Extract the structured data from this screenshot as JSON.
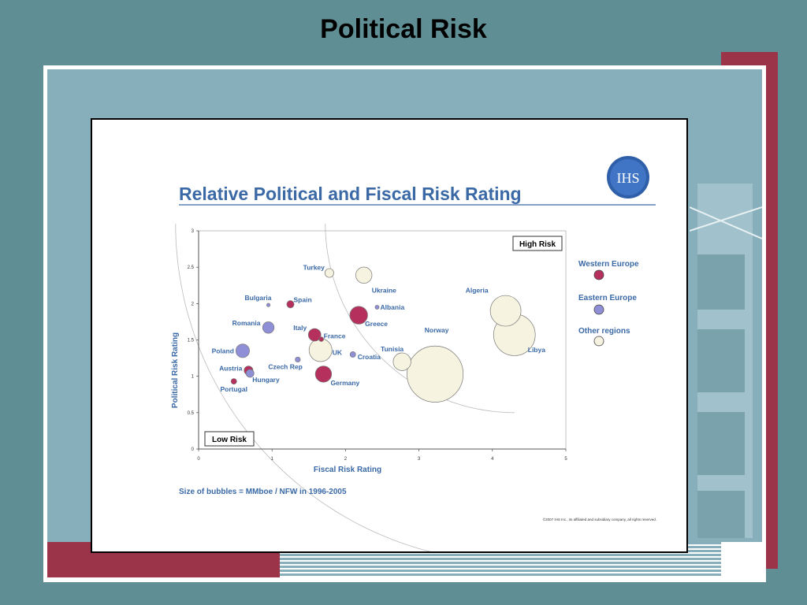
{
  "slide": {
    "title": "Political Risk"
  },
  "logo": {
    "text": "IHS"
  },
  "colors": {
    "background": "#5f8f95",
    "accent_red": "#9b3349",
    "panel_blue": "#86aebb",
    "western_europe": "#b5305d",
    "eastern_europe": "#8f8fd8",
    "other_regions": "#f6f4e0",
    "title_blue": "#3a69a6"
  },
  "chart_data": {
    "type": "scatter",
    "title": "Relative Political and Fiscal Risk Rating",
    "xlabel": "Fiscal Risk Rating",
    "ylabel": "Political Risk Rating",
    "xlim": [
      0,
      5
    ],
    "ylim": [
      0,
      3
    ],
    "x_ticks": [
      "0",
      "1",
      "2",
      "3",
      "4",
      "5"
    ],
    "y_ticks": [
      "0",
      "0.5",
      "1",
      "1.5",
      "2",
      "2.5",
      "3"
    ],
    "grid": false,
    "legend_position": "right",
    "legend": [
      {
        "name": "Western Europe",
        "color": "#b5305d"
      },
      {
        "name": "Eastern Europe",
        "color": "#8f8fd8"
      },
      {
        "name": "Other regions",
        "color": "#f6f4e0"
      }
    ],
    "annotations": {
      "high_risk": "High Risk",
      "low_risk": "Low Risk"
    },
    "note": "Size of bubbles = MMboe / NFW in 1996-2005",
    "copyright": "©2007 IHS Inc., its affiliated and subsidiary company, all rights reserved.",
    "points": [
      {
        "label": "Turkey",
        "x": 1.78,
        "y": 2.42,
        "size": 1.5,
        "region": "Other regions"
      },
      {
        "label": "Ukraine",
        "x": 2.25,
        "y": 2.39,
        "size": 5,
        "region": "Other regions"
      },
      {
        "label": "Bulgaria",
        "x": 0.95,
        "y": 1.98,
        "size": 0.2,
        "region": "Eastern Europe"
      },
      {
        "label": "Spain",
        "x": 1.25,
        "y": 1.99,
        "size": 1,
        "region": "Western Europe"
      },
      {
        "label": "Albania",
        "x": 2.43,
        "y": 1.95,
        "size": 0.3,
        "region": "Eastern Europe"
      },
      {
        "label": "Greece",
        "x": 2.18,
        "y": 1.84,
        "size": 6,
        "region": "Western Europe"
      },
      {
        "label": "Romania",
        "x": 0.95,
        "y": 1.67,
        "size": 2.5,
        "region": "Eastern Europe"
      },
      {
        "label": "Italy",
        "x": 1.58,
        "y": 1.57,
        "size": 3,
        "region": "Western Europe"
      },
      {
        "label": "France",
        "x": 1.67,
        "y": 1.51,
        "size": 0.4,
        "region": "Western Europe"
      },
      {
        "label": "Poland",
        "x": 0.6,
        "y": 1.35,
        "size": 3.5,
        "region": "Eastern Europe"
      },
      {
        "label": "UK",
        "x": 1.66,
        "y": 1.36,
        "size": 10,
        "region": "Other regions"
      },
      {
        "label": "Croatia",
        "x": 2.1,
        "y": 1.3,
        "size": 0.6,
        "region": "Eastern Europe"
      },
      {
        "label": "Tunisia",
        "x": 2.77,
        "y": 1.2,
        "size": 6,
        "region": "Other regions"
      },
      {
        "label": "Czech Rep",
        "x": 1.35,
        "y": 1.23,
        "size": 0.5,
        "region": "Eastern Europe"
      },
      {
        "label": "Austria",
        "x": 0.68,
        "y": 1.08,
        "size": 1.5,
        "region": "Western Europe"
      },
      {
        "label": "Hungary",
        "x": 0.7,
        "y": 1.04,
        "size": 1.2,
        "region": "Eastern Europe"
      },
      {
        "label": "Germany",
        "x": 1.7,
        "y": 1.03,
        "size": 5,
        "region": "Western Europe"
      },
      {
        "label": "Portugal",
        "x": 0.48,
        "y": 0.93,
        "size": 0.6,
        "region": "Western Europe"
      },
      {
        "label": "Norway",
        "x": 3.22,
        "y": 1.03,
        "size": 60,
        "region": "Other regions"
      },
      {
        "label": "Algeria",
        "x": 4.18,
        "y": 1.9,
        "size": 18,
        "region": "Other regions"
      },
      {
        "label": "Libya",
        "x": 4.3,
        "y": 1.57,
        "size": 33,
        "region": "Other regions"
      }
    ]
  }
}
